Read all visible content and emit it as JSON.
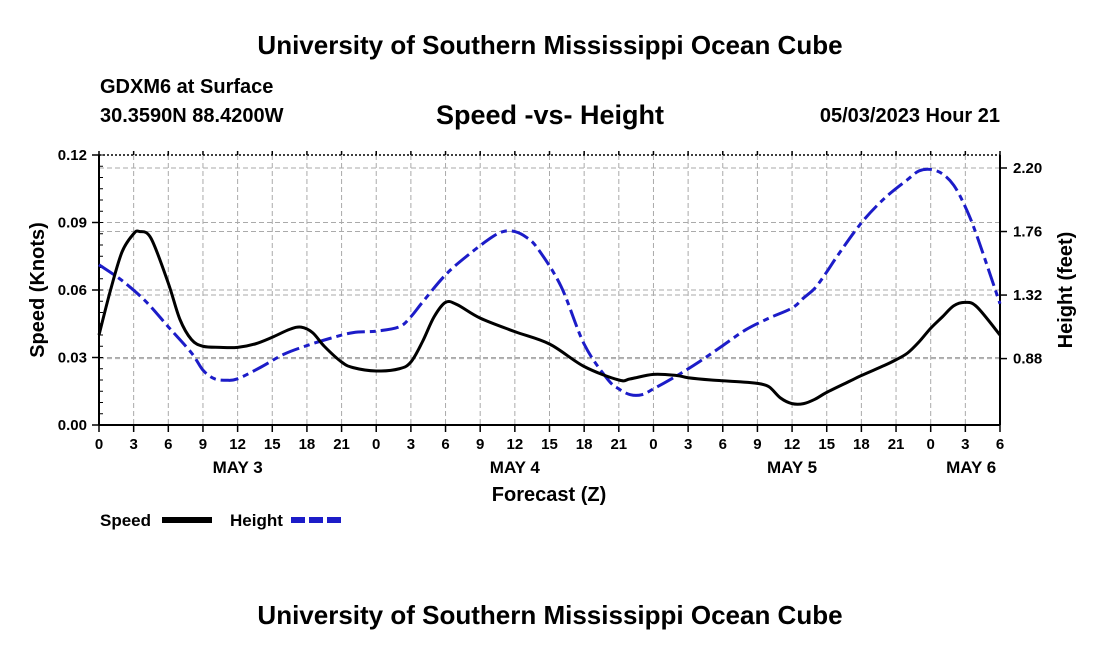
{
  "header": {
    "title": "University of Southern Mississippi Ocean Cube",
    "station": "GDXM6 at Surface",
    "coords": "30.3590N  88.4200W",
    "subtitle": "Speed -vs- Height",
    "datetime": "05/03/2023 Hour 21"
  },
  "footer": {
    "title": "University of Southern Mississippi Ocean Cube"
  },
  "legend": {
    "speed_label": "Speed",
    "height_label": "Height"
  },
  "colors": {
    "speed": "#000000",
    "height": "#1c1cc8",
    "grid": "#aaaaaa"
  },
  "chart_data": {
    "type": "line",
    "title": "Speed -vs- Height",
    "xlabel": "Forecast (Z)",
    "ylabel": "Speed (Knots)",
    "y2label": "Height (feet)",
    "x_unit": "hours from May 3 00Z",
    "xlim": [
      0,
      78
    ],
    "ylim": [
      0,
      0.12
    ],
    "y2lim": [
      0.42,
      2.29
    ],
    "x_ticks": [
      0,
      3,
      6,
      9,
      12,
      15,
      18,
      21,
      24,
      27,
      30,
      33,
      36,
      39,
      42,
      45,
      48,
      51,
      54,
      57,
      60,
      63,
      66,
      69,
      72,
      75,
      78
    ],
    "x_tick_labels": [
      "0",
      "3",
      "6",
      "9",
      "12",
      "15",
      "18",
      "21",
      "0",
      "3",
      "6",
      "9",
      "12",
      "15",
      "18",
      "21",
      "0",
      "3",
      "6",
      "9",
      "12",
      "15",
      "18",
      "21",
      "0",
      "3",
      "6"
    ],
    "day_labels": [
      {
        "x": 12,
        "label": "MAY 3"
      },
      {
        "x": 36,
        "label": "MAY 4"
      },
      {
        "x": 60,
        "label": "MAY 5"
      },
      {
        "x": 75.5,
        "label": "MAY 6"
      }
    ],
    "y_ticks": [
      0,
      0.03,
      0.06,
      0.09,
      0.12
    ],
    "y_tick_labels": [
      "0.00",
      "0.03",
      "0.06",
      "0.09",
      "0.12"
    ],
    "y2_ticks": [
      0.88,
      1.32,
      1.76,
      2.2
    ],
    "y2_tick_labels": [
      "0.88",
      "1.32",
      "1.76",
      "2.20"
    ],
    "series": [
      {
        "name": "Speed",
        "axis": "left",
        "style": "solid",
        "x": [
          0,
          1,
          2,
          3,
          3.5,
          4.5,
          6,
          7,
          8,
          9,
          10.5,
          12,
          13.5,
          15,
          16.5,
          17.5,
          18.5,
          19.5,
          21,
          22,
          24,
          26,
          27,
          28,
          29,
          30,
          31,
          33,
          36,
          39,
          42,
          45,
          46,
          48,
          50,
          51,
          53,
          56,
          57,
          58,
          59,
          60,
          61,
          62,
          63,
          65,
          66,
          68,
          69,
          70,
          71,
          72,
          73,
          74,
          75,
          76,
          78
        ],
        "values": [
          0.04,
          0.06,
          0.077,
          0.085,
          0.086,
          0.083,
          0.063,
          0.047,
          0.038,
          0.035,
          0.0345,
          0.0345,
          0.036,
          0.039,
          0.0425,
          0.0435,
          0.041,
          0.035,
          0.028,
          0.0255,
          0.024,
          0.025,
          0.028,
          0.037,
          0.048,
          0.0545,
          0.0535,
          0.0475,
          0.0415,
          0.036,
          0.026,
          0.02,
          0.0205,
          0.0225,
          0.022,
          0.021,
          0.02,
          0.019,
          0.0185,
          0.017,
          0.012,
          0.0095,
          0.0095,
          0.0115,
          0.0145,
          0.0195,
          0.022,
          0.0265,
          0.029,
          0.032,
          0.037,
          0.043,
          0.048,
          0.053,
          0.0545,
          0.0525,
          0.04
        ]
      },
      {
        "name": "Height",
        "axis": "right",
        "style": "dashed",
        "x": [
          0,
          2,
          4,
          6,
          8,
          9,
          10,
          11,
          12,
          14,
          16,
          18,
          20,
          22,
          24,
          26,
          27,
          28,
          30,
          32,
          34,
          35,
          36,
          37,
          38,
          40,
          42,
          44,
          45,
          46,
          47,
          48,
          50,
          52,
          54,
          56,
          58,
          60,
          61,
          62,
          63,
          64,
          66,
          68,
          70,
          71,
          72,
          73,
          74,
          75,
          76,
          78
        ],
        "values": [
          1.53,
          1.42,
          1.28,
          1.1,
          0.92,
          0.8,
          0.74,
          0.73,
          0.74,
          0.82,
          0.91,
          0.97,
          1.02,
          1.06,
          1.07,
          1.1,
          1.17,
          1.27,
          1.46,
          1.6,
          1.72,
          1.76,
          1.76,
          1.72,
          1.64,
          1.38,
          0.98,
          0.74,
          0.67,
          0.63,
          0.63,
          0.67,
          0.76,
          0.86,
          0.97,
          1.08,
          1.16,
          1.23,
          1.3,
          1.37,
          1.48,
          1.6,
          1.82,
          1.99,
          2.12,
          2.18,
          2.19,
          2.16,
          2.08,
          1.93,
          1.73,
          1.26
        ]
      }
    ]
  }
}
